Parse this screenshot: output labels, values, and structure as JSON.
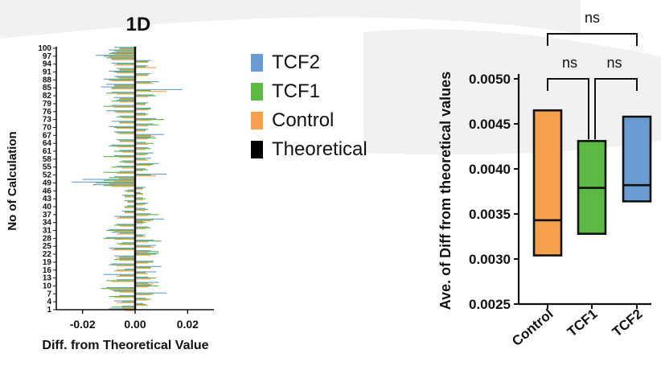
{
  "colors": {
    "tcf2": "#6a9bd1",
    "tcf1": "#5cb944",
    "control": "#f4a04d",
    "theoretical": "#000000",
    "background_shape": "#f1f1f1"
  },
  "legend": [
    {
      "name": "TCF2",
      "color_key": "tcf2"
    },
    {
      "name": "TCF1",
      "color_key": "tcf1"
    },
    {
      "name": "Control",
      "color_key": "control"
    },
    {
      "name": "Theoretical",
      "color_key": "theoretical"
    }
  ],
  "chart_data": [
    {
      "type": "bar",
      "orientation": "horizontal",
      "title": "1D",
      "xlabel": "Diff. from Theoretical Value",
      "ylabel": "No of Calculation",
      "xlim": [
        -0.03,
        0.03
      ],
      "ylim": [
        1,
        100
      ],
      "xticks": [
        -0.02,
        0.0,
        0.02
      ],
      "xtick_labels": [
        "-0.02",
        "0.00",
        "0.02"
      ],
      "yticks": [
        1,
        4,
        7,
        10,
        13,
        16,
        19,
        22,
        25,
        28,
        31,
        34,
        37,
        40,
        43,
        46,
        49,
        52,
        55,
        58,
        61,
        64,
        67,
        70,
        73,
        76,
        79,
        82,
        85,
        88,
        91,
        94,
        97,
        100
      ],
      "reference_line": {
        "name": "Theoretical",
        "x": 0.0
      },
      "series": [
        {
          "name": "TCF2",
          "color_key": "tcf2",
          "values": [
            -0.01,
            -0.005,
            0.003,
            -0.008,
            0.004,
            -0.006,
            0.012,
            -0.009,
            -0.011,
            0.006,
            0.009,
            -0.007,
            0.005,
            -0.012,
            0.008,
            -0.004,
            0.01,
            -0.009,
            0.007,
            -0.006,
            -0.008,
            0.009,
            0.006,
            -0.01,
            0.008,
            -0.005,
            0.007,
            -0.011,
            0.004,
            -0.009,
            -0.01,
            0.005,
            -0.007,
            0.003,
            0.011,
            -0.008,
            0.006,
            -0.005,
            0.004,
            -0.003,
            0.005,
            -0.004,
            0.003,
            -0.005,
            0.002,
            -0.003,
            0.004,
            -0.016,
            -0.024,
            -0.02,
            -0.008,
            0.012,
            -0.006,
            0.004,
            -0.007,
            0.009,
            -0.005,
            0.006,
            -0.008,
            0.007,
            -0.006,
            0.005,
            -0.009,
            0.004,
            -0.007,
            0.006,
            0.011,
            -0.008,
            0.005,
            -0.01,
            0.007,
            -0.009,
            0.008,
            -0.006,
            0.004,
            -0.011,
            0.006,
            -0.009,
            0.005,
            -0.007,
            -0.008,
            0.007,
            -0.009,
            0.018,
            -0.013,
            -0.011,
            0.009,
            -0.012,
            -0.008,
            0.006,
            -0.01,
            -0.007,
            0.005,
            -0.009,
            0.006,
            -0.011,
            -0.015,
            -0.009,
            -0.01,
            -0.008
          ]
        },
        {
          "name": "TCF1",
          "color_key": "tcf1",
          "values": [
            -0.006,
            -0.009,
            0.004,
            -0.005,
            0.006,
            -0.01,
            0.007,
            -0.008,
            -0.013,
            0.009,
            0.005,
            -0.011,
            0.008,
            -0.006,
            0.004,
            -0.007,
            0.006,
            -0.01,
            0.007,
            -0.008,
            -0.006,
            0.008,
            0.009,
            -0.008,
            0.006,
            -0.007,
            0.01,
            -0.012,
            0.003,
            -0.006,
            -0.011,
            0.006,
            -0.008,
            0.004,
            0.007,
            -0.006,
            0.009,
            -0.004,
            0.005,
            -0.004,
            0.004,
            -0.003,
            0.004,
            -0.004,
            0.003,
            -0.004,
            0.003,
            -0.012,
            -0.015,
            -0.012,
            -0.01,
            0.006,
            -0.012,
            0.005,
            -0.009,
            0.007,
            -0.006,
            0.004,
            -0.012,
            0.005,
            -0.008,
            0.006,
            -0.01,
            0.007,
            -0.006,
            0.008,
            0.006,
            -0.007,
            0.004,
            -0.008,
            0.009,
            -0.006,
            0.011,
            -0.007,
            0.005,
            -0.008,
            0.006,
            -0.012,
            0.004,
            -0.009,
            -0.006,
            0.008,
            -0.011,
            0.006,
            -0.009,
            -0.008,
            0.006,
            -0.01,
            -0.007,
            0.005,
            -0.008,
            -0.006,
            0.004,
            -0.007,
            0.005,
            -0.009,
            -0.012,
            -0.01,
            -0.008,
            -0.006
          ]
        },
        {
          "name": "Control",
          "color_key": "control",
          "values": [
            -0.004,
            -0.005,
            0.005,
            -0.007,
            0.005,
            -0.008,
            0.006,
            -0.006,
            -0.01,
            0.005,
            0.007,
            -0.009,
            0.006,
            -0.007,
            0.005,
            -0.008,
            0.006,
            -0.007,
            0.005,
            -0.006,
            -0.007,
            0.006,
            0.005,
            -0.009,
            0.007,
            -0.006,
            0.005,
            -0.008,
            0.004,
            -0.007,
            -0.008,
            0.004,
            -0.006,
            0.003,
            0.006,
            -0.007,
            0.005,
            -0.004,
            0.004,
            -0.004,
            0.003,
            -0.003,
            0.003,
            -0.004,
            0.003,
            -0.003,
            0.003,
            -0.009,
            -0.01,
            -0.008,
            -0.006,
            0.008,
            -0.007,
            0.003,
            -0.005,
            0.006,
            -0.004,
            0.005,
            -0.006,
            0.004,
            -0.005,
            0.004,
            -0.007,
            0.005,
            -0.006,
            0.005,
            0.007,
            -0.006,
            0.004,
            -0.007,
            0.005,
            -0.006,
            0.006,
            -0.005,
            0.004,
            -0.007,
            0.005,
            -0.008,
            0.004,
            -0.006,
            -0.006,
            0.005,
            -0.007,
            0.012,
            -0.009,
            -0.008,
            0.007,
            -0.009,
            -0.006,
            0.005,
            -0.007,
            -0.006,
            0.008,
            -0.008,
            0.005,
            -0.009,
            -0.01,
            -0.008,
            -0.007,
            -0.006
          ]
        }
      ]
    },
    {
      "type": "box",
      "title": "",
      "xlabel": "",
      "ylabel": "Ave. of Diff from theoretical values",
      "ylim": [
        0.0025,
        0.005
      ],
      "yticks": [
        0.0025,
        0.003,
        0.0035,
        0.004,
        0.0045,
        0.005
      ],
      "ytick_labels": [
        "0.0025",
        "0.0030",
        "0.0035",
        "0.0040",
        "0.0045",
        "0.0050"
      ],
      "categories": [
        "Control",
        "TCF1",
        "TCF2"
      ],
      "boxes": [
        {
          "name": "Control",
          "color_key": "control",
          "min": 0.00304,
          "median": 0.00343,
          "max": 0.00465
        },
        {
          "name": "TCF1",
          "color_key": "tcf1",
          "min": 0.00328,
          "median": 0.00379,
          "max": 0.00431
        },
        {
          "name": "TCF2",
          "color_key": "tcf2",
          "min": 0.00364,
          "median": 0.00382,
          "max": 0.00458
        }
      ],
      "significance": [
        {
          "from": "Control",
          "to": "TCF2",
          "label": "ns"
        },
        {
          "from": "Control",
          "to": "TCF1",
          "label": "ns"
        },
        {
          "from": "TCF1",
          "to": "TCF2",
          "label": "ns"
        }
      ]
    }
  ]
}
